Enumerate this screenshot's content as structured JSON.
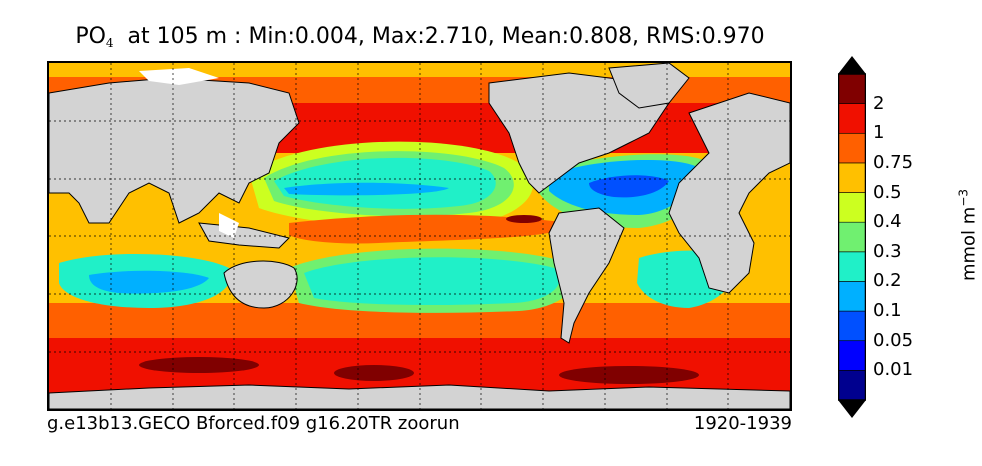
{
  "title": {
    "prefix": "PO",
    "subscript": "4",
    "rest": "  at 105 m : Min:0.004, Max:2.710, Mean:0.808, RMS:0.970"
  },
  "footer": {
    "experiment": "g.e13b13.GECO Bforced.f09 g16.20TR zoorun",
    "period": "1920-1939"
  },
  "colorbar": {
    "unit": "mmol m",
    "unit_exponent": "−3",
    "levels": [
      "0.01",
      "0.05",
      "0.1",
      "0.2",
      "0.3",
      "0.4",
      "0.5",
      "0.75",
      "1",
      "2"
    ],
    "colors": [
      "#00008f",
      "#0000ff",
      "#0050ff",
      "#00b0ff",
      "#20f0c8",
      "#70f070",
      "#ccff20",
      "#ffc000",
      "#ff6000",
      "#f01000",
      "#800000"
    ]
  },
  "map": {
    "land_color": "#d3d3d3",
    "ice_color": "#ffffff"
  }
}
